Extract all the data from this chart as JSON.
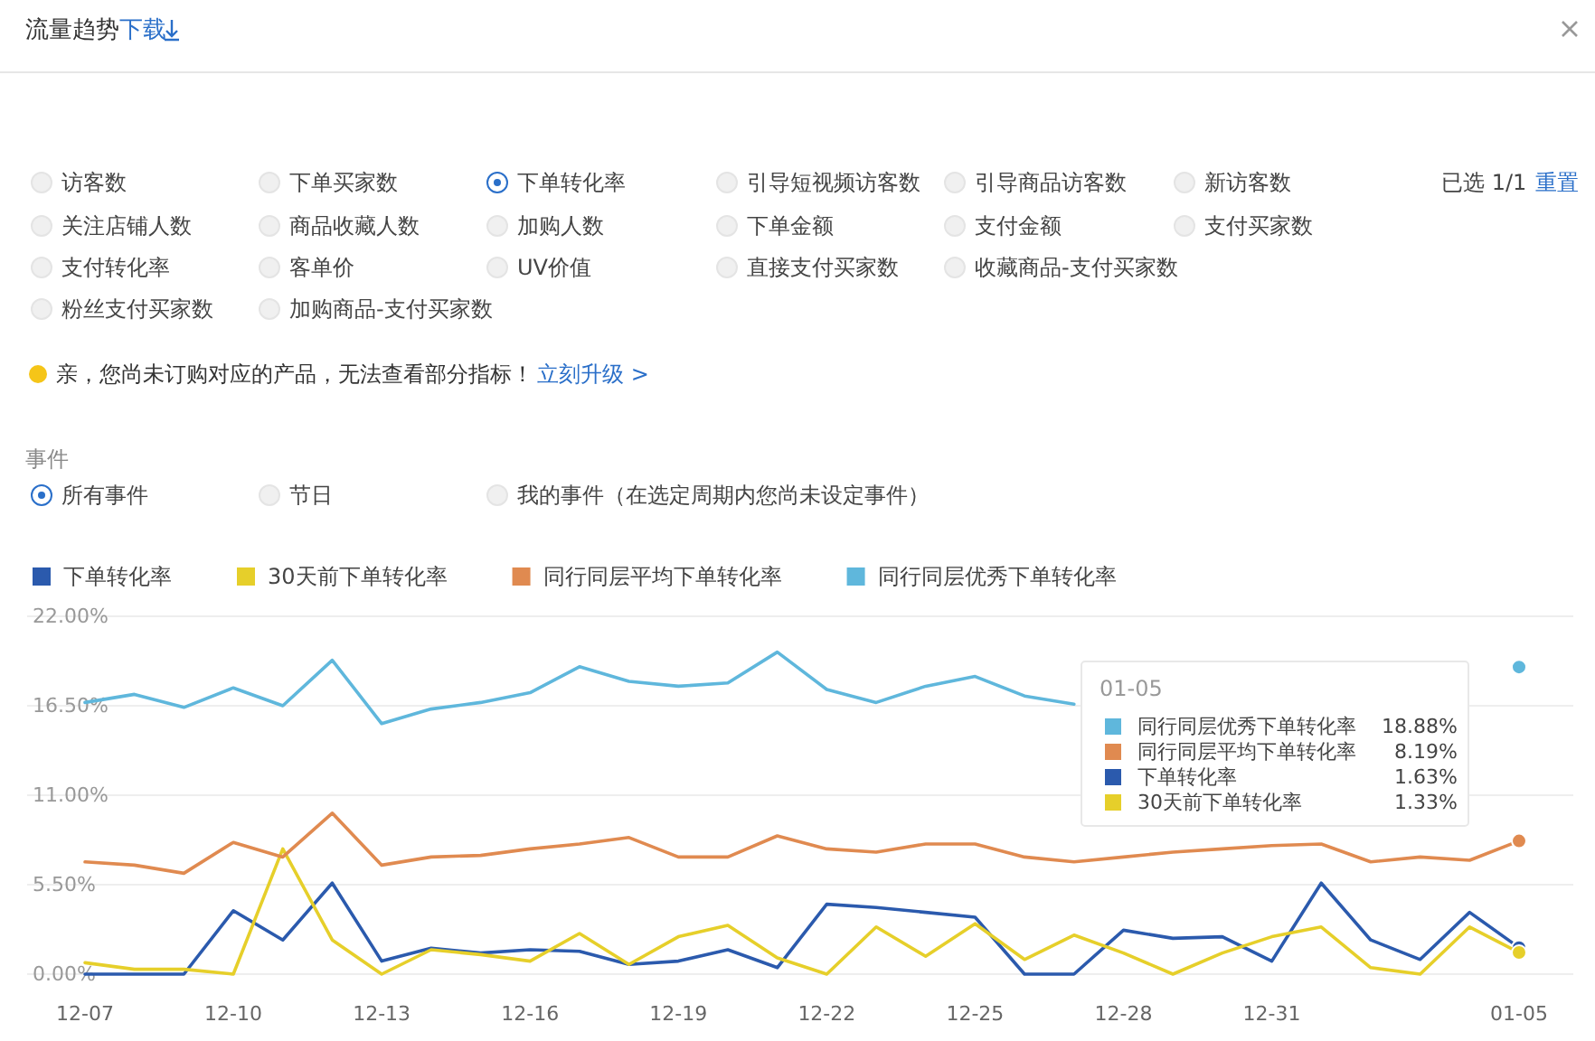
{
  "chart_data": {
    "type": "line",
    "categories": [
      "12-07",
      null,
      null,
      "12-10",
      null,
      null,
      "12-13",
      null,
      null,
      "12-16",
      null,
      null,
      "12-19",
      null,
      null,
      "12-22",
      null,
      null,
      "12-25",
      null,
      null,
      "12-28",
      null,
      null,
      "12-31",
      null,
      null,
      null,
      null,
      "01-05"
    ],
    "series": [
      {
        "name": "下单转化率",
        "color": "#2b5aad",
        "values": [
          0,
          0,
          0,
          3.9,
          2.1,
          5.6,
          0.8,
          1.6,
          1.3,
          1.5,
          1.4,
          0.6,
          0.8,
          1.5,
          0.4,
          4.3,
          4.1,
          3.8,
          3.5,
          0,
          0,
          2.7,
          2.2,
          2.3,
          0.8,
          5.6,
          2.1,
          0.9,
          3.8,
          1.63
        ]
      },
      {
        "name": "30天前下单转化率",
        "color": "#e6cf2a",
        "values": [
          0.7,
          0.3,
          0.3,
          0,
          7.7,
          2.1,
          0,
          1.5,
          1.2,
          0.8,
          2.5,
          0.6,
          2.3,
          3.0,
          1.0,
          0,
          2.9,
          1.1,
          3.1,
          0.9,
          2.4,
          1.3,
          0,
          1.3,
          2.3,
          2.9,
          0.4,
          0,
          2.9,
          1.33
        ]
      },
      {
        "name": "同行同层平均下单转化率",
        "color": "#e08a50",
        "values": [
          6.9,
          6.7,
          6.2,
          8.1,
          7.2,
          9.9,
          6.7,
          7.2,
          7.3,
          7.7,
          8.0,
          8.4,
          7.2,
          7.2,
          8.5,
          7.7,
          7.5,
          8.0,
          8.0,
          7.2,
          6.9,
          7.2,
          7.5,
          7.7,
          7.9,
          8.0,
          6.9,
          7.2,
          7.0,
          8.19
        ]
      },
      {
        "name": "同行同层优秀下单转化率",
        "color": "#5fb7dc",
        "values": [
          16.7,
          17.2,
          16.4,
          17.6,
          16.5,
          19.3,
          15.4,
          16.3,
          16.7,
          17.3,
          18.9,
          18.0,
          17.7,
          17.9,
          19.8,
          17.5,
          16.7,
          17.7,
          18.3,
          17.1,
          16.6,
          null,
          null,
          null,
          null,
          null,
          null,
          null,
          null,
          18.88
        ]
      }
    ],
    "ylim": [
      0,
      22
    ],
    "yticks": [
      {
        "value": 0,
        "label": "0.00%"
      },
      {
        "value": 5.5,
        "label": "5.50%"
      },
      {
        "value": 11,
        "label": "11.00%"
      },
      {
        "value": 16.5,
        "label": "16.50%"
      },
      {
        "value": 22,
        "label": "22.00%"
      }
    ],
    "grid": "y",
    "legend": "top",
    "marker": "none",
    "line_style": "solid",
    "annotations": [
      "流量趋势",
      "下载",
      "访客数",
      "下单买家数",
      "下单转化率",
      "引导短视频访客数",
      "引导商品访客数",
      "新访客数",
      "关注店铺人数",
      "商品收藏人数",
      "加购人数",
      "下单金额",
      "支付金额",
      "支付买家数",
      "支付转化率",
      "客单价",
      "UV价值",
      "直接支付买家数",
      "收藏商品-支付买家数",
      "粉丝支付买家数",
      "加购商品-支付买家数",
      "已选 1/1",
      "重置",
      "亲，您尚未订购对应的产品，无法查看部分指标！",
      "立刻升级 >",
      "事件",
      "所有事件",
      "节日",
      "我的事件（在选定周期内您尚未设定事件）",
      "01-05",
      "18.88%",
      "8.19%",
      "1.63%",
      "1.33%"
    ]
  }
}
